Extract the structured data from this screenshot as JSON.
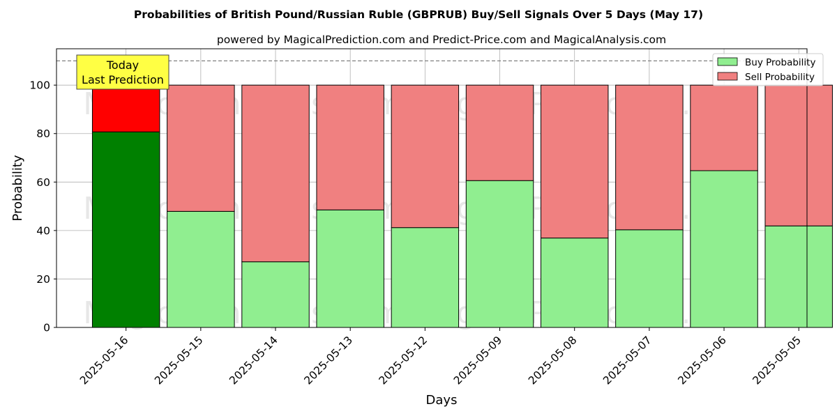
{
  "chart_data": {
    "type": "bar",
    "stacked": true,
    "title": "Probabilities of British Pound/Russian Ruble (GBPRUB) Buy/Sell Signals Over 5 Days (May 17)",
    "subtitle": "powered by MagicalPrediction.com and Predict-Price.com and MagicalAnalysis.com",
    "xlabel": "Days",
    "ylabel": "Probability",
    "ylim": [
      0,
      115
    ],
    "yticks": [
      0,
      20,
      40,
      60,
      80,
      100
    ],
    "grid": true,
    "legend_position": "top-right",
    "reference_line": 110,
    "categories": [
      "2025-05-16",
      "2025-05-15",
      "2025-05-14",
      "2025-05-13",
      "2025-05-12",
      "2025-05-09",
      "2025-05-08",
      "2025-05-07",
      "2025-05-06",
      "2025-05-05"
    ],
    "series": [
      {
        "name": "Buy Probability",
        "color": "#90ee90",
        "highlight_color": "#008000",
        "values": [
          80.7,
          47.9,
          27.1,
          48.5,
          41.2,
          60.6,
          36.9,
          40.3,
          64.7,
          41.9
        ]
      },
      {
        "name": "Sell Probability",
        "color": "#f08080",
        "highlight_color": "#ff0000",
        "values": [
          19.3,
          52.1,
          72.9,
          51.5,
          58.8,
          39.4,
          63.1,
          59.7,
          35.3,
          58.1
        ]
      }
    ],
    "annotation": {
      "line1": "Today",
      "line2": "Last Prediction",
      "category_index": 0,
      "background": "#ffff44"
    },
    "watermarks": [
      "MagicalAnalysis.com",
      "MagicalPrediction.com"
    ]
  }
}
